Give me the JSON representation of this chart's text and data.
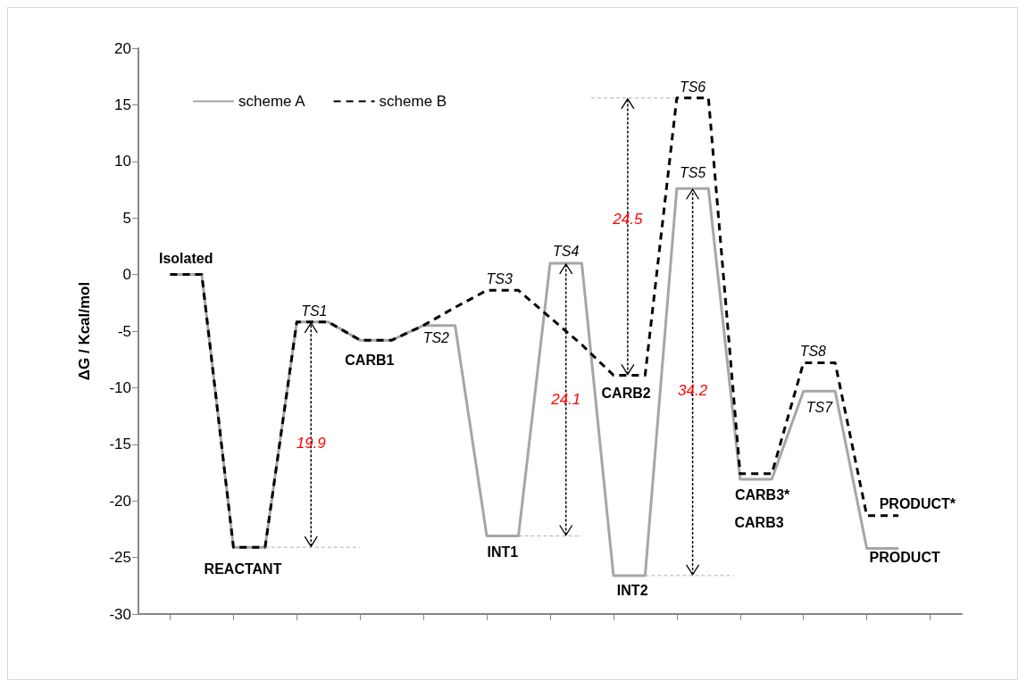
{
  "chart_data": {
    "type": "line",
    "ylabel": "ΔG / Kcal/mol",
    "categories": [
      null,
      null,
      null,
      null,
      null,
      null,
      null,
      null,
      null,
      null,
      null,
      null,
      null,
      null,
      null,
      null,
      null,
      null,
      null,
      null,
      null,
      null,
      null,
      null,
      null,
      null,
      null
    ],
    "series": [
      {
        "name": "scheme A",
        "color": "#a6a6a6",
        "line_style": "solid",
        "values": [
          null,
          0,
          0,
          -24.1,
          -24.1,
          -4.2,
          -4.2,
          -5.8,
          -5.8,
          -4.5,
          -4.5,
          -23.1,
          -23.1,
          1.0,
          1.0,
          -26.6,
          -26.6,
          7.6,
          7.6,
          -18.1,
          -18.1,
          -10.3,
          -10.3,
          -24.2,
          -24.2,
          null,
          null
        ]
      },
      {
        "name": "scheme B",
        "color": "#000000",
        "line_style": "dashed",
        "values": [
          null,
          0,
          0,
          -24.1,
          -24.1,
          -4.2,
          -4.2,
          -5.8,
          -5.8,
          -4.5,
          -2.9,
          -1.4,
          -1.4,
          -3.8,
          -6.2,
          -8.9,
          -8.9,
          15.6,
          15.6,
          -17.6,
          -17.6,
          -7.8,
          -7.8,
          -21.3,
          -21.3,
          null,
          null
        ]
      }
    ],
    "ylim": [
      -30,
      20
    ],
    "yticks": [
      -30,
      -25,
      -20,
      -15,
      -10,
      -5,
      0,
      5,
      10,
      15,
      20
    ],
    "grid": false,
    "legend": "top left",
    "marker": "none",
    "annotations": [
      {
        "text": "Isolated",
        "y": 0
      },
      {
        "text": "REACTANT",
        "y": -24.1
      },
      {
        "text": "TS1",
        "y": -4.2
      },
      {
        "text": "CARB1",
        "y": -5.8
      },
      {
        "text": "TS2",
        "y": -4.5
      },
      {
        "text": "TS3",
        "y": -1.4
      },
      {
        "text": "INT1",
        "y": -23.1
      },
      {
        "text": "TS4",
        "y": 1.0
      },
      {
        "text": "CARB2",
        "y": -8.9
      },
      {
        "text": "INT2",
        "y": -26.6
      },
      {
        "text": "TS5",
        "y": 7.6
      },
      {
        "text": "TS6",
        "y": 15.6
      },
      {
        "text": "CARB3*",
        "y": -17.6
      },
      {
        "text": "CARB3",
        "y": -18.1
      },
      {
        "text": "TS8",
        "y": -7.8
      },
      {
        "text": "TS7",
        "y": -10.3
      },
      "PRODUCT*",
      "PRODUCT",
      "19.9",
      "24.1",
      "24.5",
      "34.2"
    ]
  }
}
